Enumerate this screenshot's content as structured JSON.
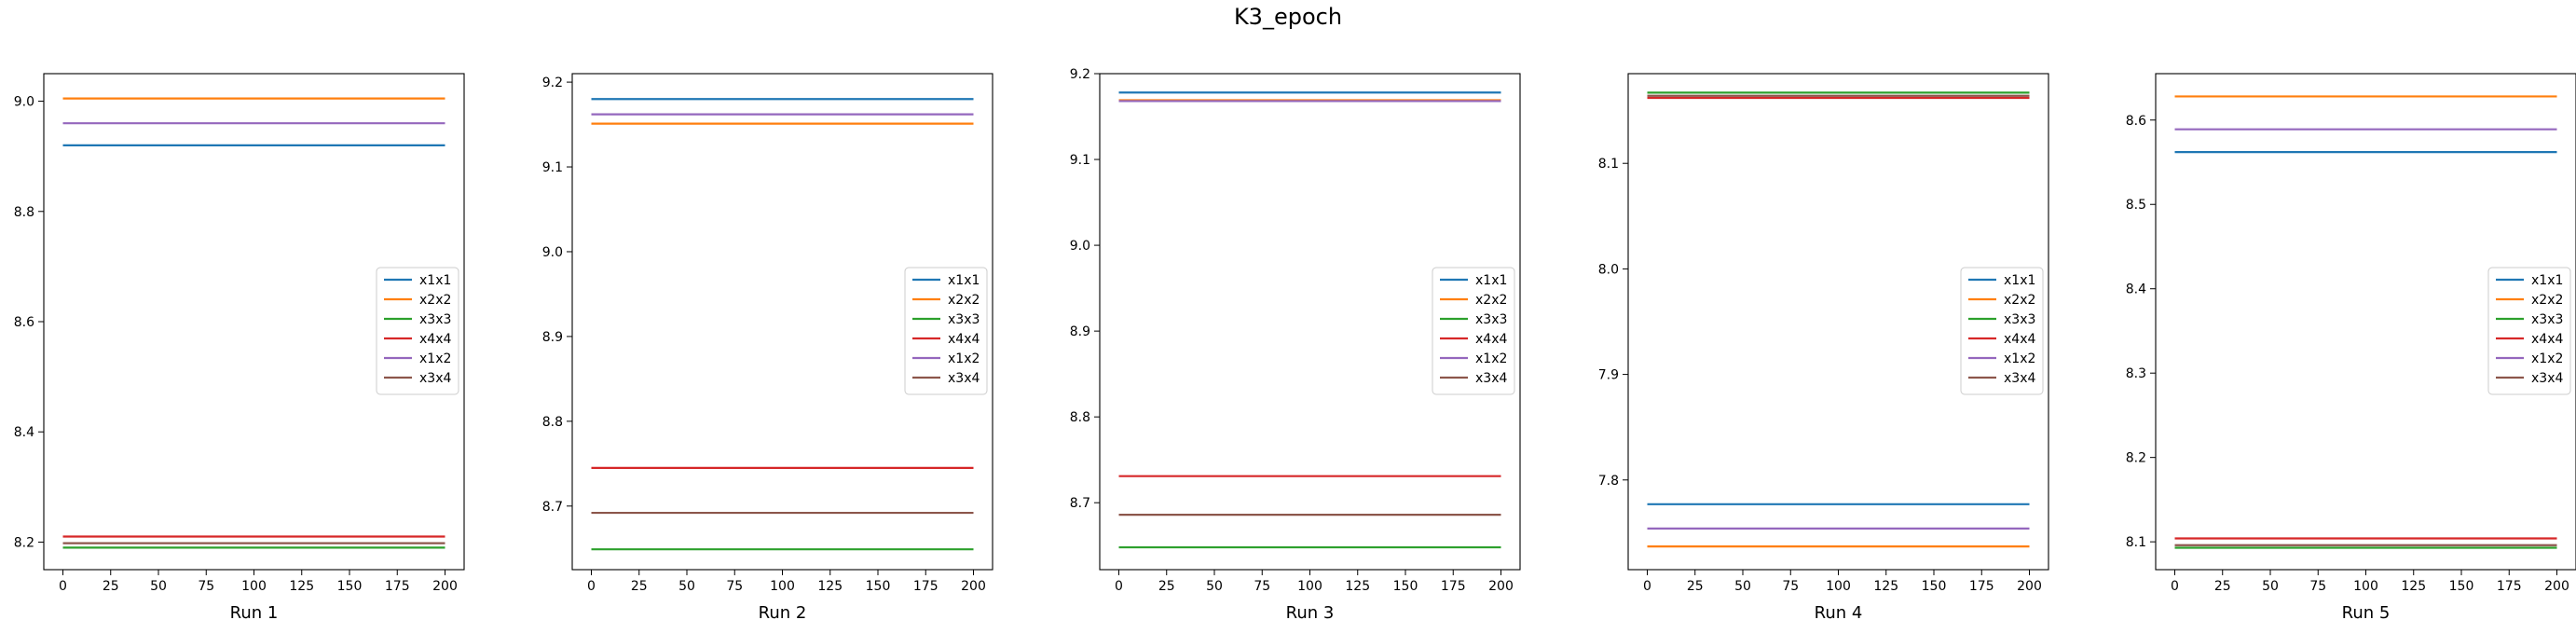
{
  "figure": {
    "title": "K3_epoch"
  },
  "chart_data": [
    {
      "type": "line",
      "xlabel": "Run 1",
      "x": [
        0,
        200
      ],
      "xticks": [
        0,
        25,
        50,
        75,
        100,
        125,
        150,
        175,
        200
      ],
      "xlim": [
        -10,
        210
      ],
      "ylim": [
        8.15,
        9.05
      ],
      "yticks": [
        "8.2",
        "8.4",
        "8.6",
        "8.8",
        "9.0"
      ],
      "legend_position": "center right",
      "grid": false,
      "series": [
        {
          "name": "x1x1",
          "color": "#1f77b4",
          "values": [
            8.92,
            8.92
          ]
        },
        {
          "name": "x2x2",
          "color": "#ff7f0e",
          "values": [
            9.005,
            9.005
          ]
        },
        {
          "name": "x3x3",
          "color": "#2ca02c",
          "values": [
            8.19,
            8.19
          ]
        },
        {
          "name": "x4x4",
          "color": "#d62728",
          "values": [
            8.21,
            8.21
          ]
        },
        {
          "name": "x1x2",
          "color": "#9467bd",
          "values": [
            8.96,
            8.96
          ]
        },
        {
          "name": "x3x4",
          "color": "#8c564b",
          "values": [
            8.198,
            8.198
          ]
        }
      ]
    },
    {
      "type": "line",
      "xlabel": "Run 2",
      "x": [
        0,
        200
      ],
      "xticks": [
        0,
        25,
        50,
        75,
        100,
        125,
        150,
        175,
        200
      ],
      "xlim": [
        -10,
        210
      ],
      "ylim": [
        8.625,
        9.21
      ],
      "yticks": [
        "8.7",
        "8.8",
        "8.9",
        "9.0",
        "9.1",
        "9.2"
      ],
      "legend_position": "center right",
      "grid": false,
      "series": [
        {
          "name": "x1x1",
          "color": "#1f77b4",
          "values": [
            9.18,
            9.18
          ]
        },
        {
          "name": "x2x2",
          "color": "#ff7f0e",
          "values": [
            9.151,
            9.151
          ]
        },
        {
          "name": "x3x3",
          "color": "#2ca02c",
          "values": [
            8.649,
            8.649
          ]
        },
        {
          "name": "x4x4",
          "color": "#d62728",
          "values": [
            8.745,
            8.745
          ]
        },
        {
          "name": "x1x2",
          "color": "#9467bd",
          "values": [
            9.162,
            9.162
          ]
        },
        {
          "name": "x3x4",
          "color": "#8c564b",
          "values": [
            8.692,
            8.692
          ]
        }
      ]
    },
    {
      "type": "line",
      "xlabel": "Run 3",
      "x": [
        0,
        200
      ],
      "xticks": [
        0,
        25,
        50,
        75,
        100,
        125,
        150,
        175,
        200
      ],
      "xlim": [
        -10,
        210
      ],
      "ylim": [
        8.622,
        9.2
      ],
      "yticks": [
        "8.7",
        "8.8",
        "8.9",
        "9.0",
        "9.1",
        "9.2"
      ],
      "legend_position": "center right",
      "grid": false,
      "series": [
        {
          "name": "x1x1",
          "color": "#1f77b4",
          "values": [
            9.178,
            9.178
          ]
        },
        {
          "name": "x2x2",
          "color": "#ff7f0e",
          "values": [
            9.169,
            9.169
          ]
        },
        {
          "name": "x3x3",
          "color": "#2ca02c",
          "values": [
            8.648,
            8.648
          ]
        },
        {
          "name": "x4x4",
          "color": "#d62728",
          "values": [
            8.731,
            8.731
          ]
        },
        {
          "name": "x1x2",
          "color": "#9467bd",
          "values": [
            9.168,
            9.168
          ]
        },
        {
          "name": "x3x4",
          "color": "#8c564b",
          "values": [
            8.686,
            8.686
          ]
        }
      ]
    },
    {
      "type": "line",
      "xlabel": "Run 4",
      "x": [
        0,
        200
      ],
      "xticks": [
        0,
        25,
        50,
        75,
        100,
        125,
        150,
        175,
        200
      ],
      "xlim": [
        -10,
        210
      ],
      "ylim": [
        7.715,
        8.185
      ],
      "yticks": [
        "7.8",
        "7.9",
        "8.0",
        "8.1"
      ],
      "legend_position": "center right",
      "grid": false,
      "series": [
        {
          "name": "x1x1",
          "color": "#1f77b4",
          "values": [
            7.777,
            7.777
          ]
        },
        {
          "name": "x2x2",
          "color": "#ff7f0e",
          "values": [
            7.737,
            7.737
          ]
        },
        {
          "name": "x3x3",
          "color": "#2ca02c",
          "values": [
            8.167,
            8.167
          ]
        },
        {
          "name": "x4x4",
          "color": "#d62728",
          "values": [
            8.162,
            8.162
          ]
        },
        {
          "name": "x1x2",
          "color": "#9467bd",
          "values": [
            7.754,
            7.754
          ]
        },
        {
          "name": "x3x4",
          "color": "#8c564b",
          "values": [
            8.164,
            8.164
          ]
        }
      ]
    },
    {
      "type": "line",
      "xlabel": "Run 5",
      "x": [
        0,
        200
      ],
      "xticks": [
        0,
        25,
        50,
        75,
        100,
        125,
        150,
        175,
        200
      ],
      "xlim": [
        -10,
        210
      ],
      "ylim": [
        8.067,
        8.655
      ],
      "yticks": [
        "8.1",
        "8.2",
        "8.3",
        "8.4",
        "8.5",
        "8.6"
      ],
      "legend_position": "center right",
      "grid": false,
      "series": [
        {
          "name": "x1x1",
          "color": "#1f77b4",
          "values": [
            8.562,
            8.562
          ]
        },
        {
          "name": "x2x2",
          "color": "#ff7f0e",
          "values": [
            8.628,
            8.628
          ]
        },
        {
          "name": "x3x3",
          "color": "#2ca02c",
          "values": [
            8.093,
            8.093
          ]
        },
        {
          "name": "x4x4",
          "color": "#d62728",
          "values": [
            8.104,
            8.104
          ]
        },
        {
          "name": "x1x2",
          "color": "#9467bd",
          "values": [
            8.589,
            8.589
          ]
        },
        {
          "name": "x3x4",
          "color": "#8c564b",
          "values": [
            8.096,
            8.096
          ]
        }
      ]
    }
  ]
}
